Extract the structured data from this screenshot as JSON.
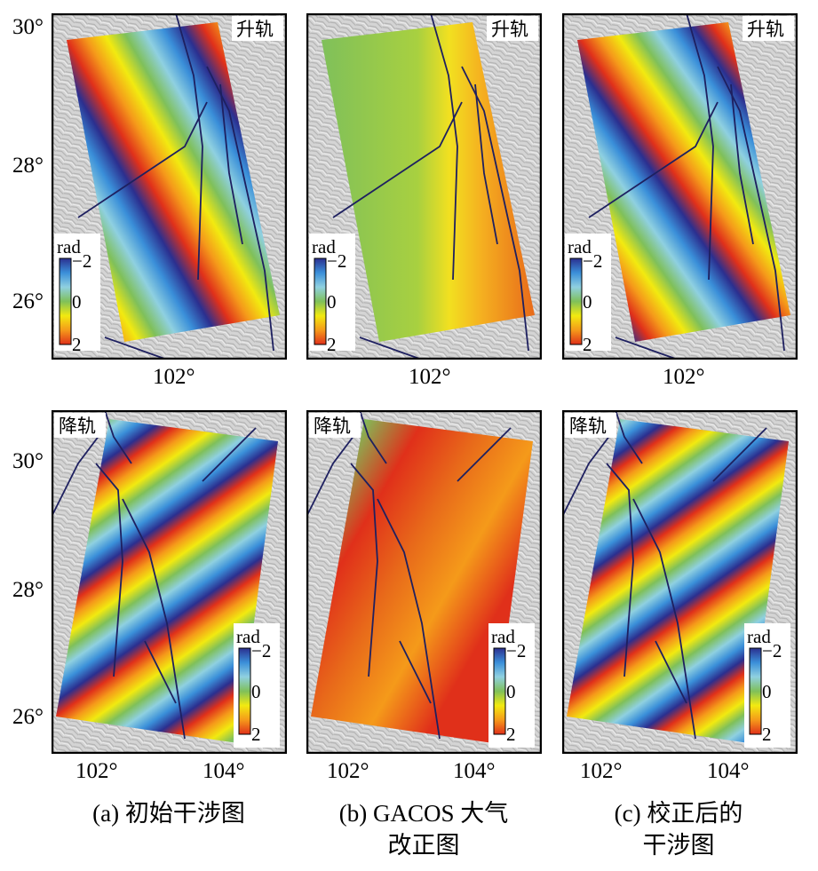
{
  "colorbar": {
    "unit": "rad",
    "min_label": "−2",
    "mid_label": "0",
    "max_label": "2",
    "colors": [
      "#2b2f8f",
      "#3a8fd9",
      "#8fd0e0",
      "#7fc05a",
      "#f2ea10",
      "#f59a1a",
      "#e0301a"
    ]
  },
  "track_labels": {
    "ascending": "升轨",
    "descending": "降轨"
  },
  "top_row": {
    "y_ticks": [
      "30°",
      "28°",
      "26°"
    ],
    "x_ticks": [
      "102°"
    ]
  },
  "bottom_row": {
    "y_ticks": [
      "30°",
      "28°",
      "26°"
    ],
    "x_ticks": [
      "102°",
      "104°"
    ]
  },
  "captions": [
    {
      "line1": "(a) 初始干涉图",
      "line2": ""
    },
    {
      "line1": "(b) GACOS 大气",
      "line2": "改正图"
    },
    {
      "line1": "(c) 校正后的",
      "line2": "干涉图"
    }
  ]
}
